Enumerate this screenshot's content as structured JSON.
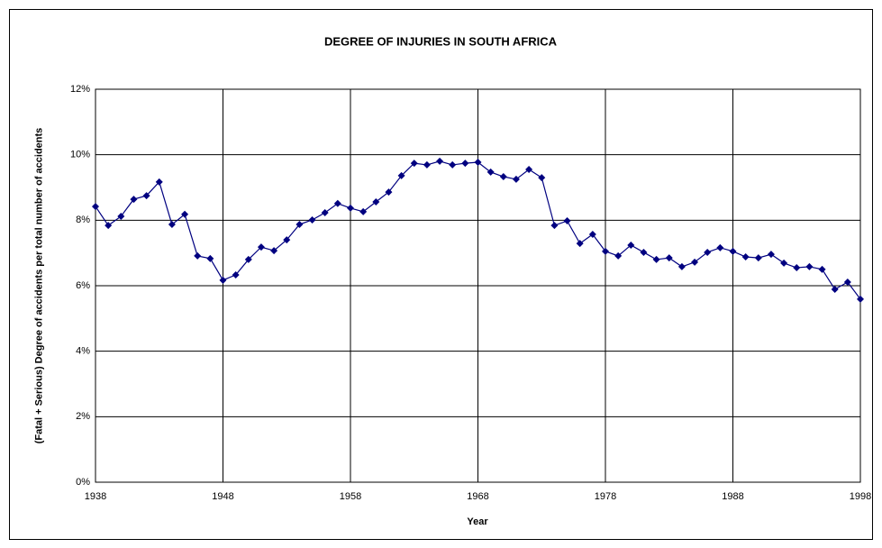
{
  "chart_data": {
    "type": "line",
    "title": "DEGREE OF INJURIES IN SOUTH AFRICA",
    "x_label": "Year",
    "y_label": "(Fatal + Serious) Degree of accidents per total number of accidents",
    "x": [
      1938,
      1939,
      1940,
      1941,
      1942,
      1943,
      1944,
      1945,
      1946,
      1947,
      1948,
      1949,
      1950,
      1951,
      1952,
      1953,
      1954,
      1955,
      1956,
      1957,
      1958,
      1959,
      1960,
      1961,
      1962,
      1963,
      1964,
      1965,
      1966,
      1967,
      1968,
      1969,
      1970,
      1971,
      1972,
      1973,
      1974,
      1975,
      1976,
      1977,
      1978,
      1979,
      1980,
      1981,
      1982,
      1983,
      1984,
      1985,
      1986,
      1987,
      1988,
      1989,
      1990,
      1991,
      1992,
      1993,
      1994,
      1995,
      1996,
      1997,
      1998
    ],
    "series": [
      {
        "color": "#000080",
        "values": [
          8.42,
          7.84,
          8.12,
          8.64,
          8.75,
          9.17,
          7.87,
          8.18,
          6.91,
          6.83,
          6.17,
          6.33,
          6.8,
          7.18,
          7.07,
          7.4,
          7.87,
          8.01,
          8.23,
          8.51,
          8.37,
          8.26,
          8.56,
          8.86,
          9.36,
          9.74,
          9.69,
          9.8,
          9.69,
          9.74,
          9.77,
          9.47,
          9.33,
          9.25,
          9.55,
          9.3,
          7.84,
          7.98,
          7.29,
          7.57,
          7.05,
          6.91,
          7.24,
          7.02,
          6.8,
          6.85,
          6.58,
          6.72,
          7.02,
          7.16,
          7.05,
          6.88,
          6.85,
          6.96,
          6.69,
          6.55,
          6.58,
          6.5,
          5.89,
          6.11,
          5.59
        ]
      }
    ],
    "xlim": [
      1938,
      1998
    ],
    "xticks": [
      1938,
      1948,
      1958,
      1968,
      1978,
      1988,
      1998
    ],
    "ylim": [
      0,
      12
    ],
    "yticks": [
      {
        "value": 0,
        "label": "0%"
      },
      {
        "value": 2,
        "label": "2%"
      },
      {
        "value": 4,
        "label": "4%"
      },
      {
        "value": 6,
        "label": "6%"
      },
      {
        "value": 8,
        "label": "8%"
      },
      {
        "value": 10,
        "label": "10%"
      },
      {
        "value": 12,
        "label": "12%"
      }
    ],
    "grid": true
  }
}
